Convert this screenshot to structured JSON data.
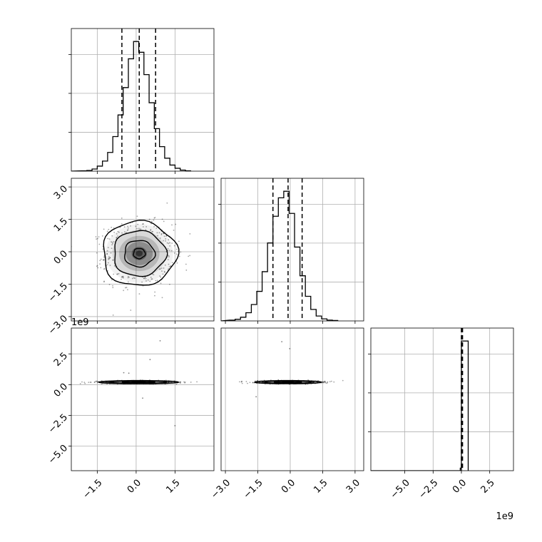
{
  "chart_data": {
    "type": "corner",
    "grid": true,
    "panels": [
      {
        "id": "hist-param1",
        "type": "histogram",
        "xlim": [
          -2.5,
          3.0
        ],
        "bin_start": -2.1,
        "bin_width": 0.2,
        "counts": [
          1,
          2,
          6,
          14,
          28,
          52,
          96,
          156,
          232,
          312,
          360,
          330,
          268,
          190,
          118,
          68,
          36,
          17,
          8,
          3,
          1
        ],
        "quantiles": [
          -0.55,
          0.12,
          0.75
        ],
        "xticks": [
          -1.5,
          0.0,
          1.5
        ],
        "show_xticklabels": false
      },
      {
        "id": "scatter-param1-param2",
        "type": "scatter-contour",
        "xlim": [
          -2.5,
          3.0
        ],
        "ylim": [
          -3.2,
          3.4
        ],
        "xticks": [
          -1.5,
          0.0,
          1.5
        ],
        "yticks": [
          -3.0,
          -1.5,
          0.0,
          1.5,
          3.0
        ],
        "ytick_labels": [
          "−3.0",
          "−1.5",
          "0.0",
          "1.5",
          "3.0"
        ],
        "center": [
          0.12,
          -0.08
        ],
        "sigma": [
          0.65,
          0.68
        ],
        "contour_levels_sigma": [
          0.35,
          0.9,
          1.55,
          2.2
        ],
        "show_xticklabels": false
      },
      {
        "id": "hist-param2",
        "type": "histogram",
        "xlim": [
          -3.2,
          3.4
        ],
        "bin_start": -2.8,
        "bin_width": 0.25,
        "counts": [
          2,
          4,
          9,
          20,
          40,
          72,
          120,
          190,
          255,
          300,
          316,
          262,
          180,
          110,
          60,
          28,
          12,
          5,
          2,
          1
        ],
        "quantiles": [
          -0.8,
          -0.1,
          0.55
        ],
        "xticks": [
          -3.0,
          -1.5,
          0.0,
          1.5,
          3.0
        ],
        "show_xticklabels": false
      },
      {
        "id": "scatter-param1-param3",
        "type": "scatter-contour",
        "xlim": [
          -2.5,
          3.0
        ],
        "ylim": [
          -7.0,
          4.6
        ],
        "xticks": [
          -1.5,
          0.0,
          1.5
        ],
        "xtick_labels": [
          "−1.5",
          "0.0",
          "1.5"
        ],
        "yticks": [
          -5.0,
          -2.5,
          0.0,
          2.5
        ],
        "ytick_labels": [
          "−5.0",
          "−2.5",
          "0.0",
          "2.5"
        ],
        "offset_label_top": "1e9",
        "center": [
          0.1,
          0.2
        ],
        "sigma": [
          0.7,
          0.06
        ]
      },
      {
        "id": "scatter-param2-param3",
        "type": "scatter-contour",
        "xlim": [
          -3.2,
          3.4
        ],
        "ylim": [
          -7.0,
          4.6
        ],
        "xticks": [
          -3.0,
          -1.5,
          0.0,
          1.5,
          3.0
        ],
        "xtick_labels": [
          "−3.0",
          "−1.5",
          "0.0",
          "1.5",
          "3.0"
        ],
        "center": [
          -0.1,
          0.2
        ],
        "sigma": [
          0.7,
          0.06
        ]
      },
      {
        "id": "hist-param3",
        "type": "histogram",
        "xlim": [
          -8.0,
          4.6
        ],
        "xticks": [
          -5.0,
          -2.5,
          0.0,
          2.5
        ],
        "xtick_labels": [
          "−5.0",
          "−2.5",
          "0.0",
          "2.5"
        ],
        "offset_label_bottom": "1e9",
        "bars": [
          {
            "x0": -0.1,
            "x1": 0.0,
            "height": 0.02
          },
          {
            "x0": 0.0,
            "x1": 0.6,
            "height": 1.0
          }
        ],
        "quantiles": [
          0.0,
          0.05,
          0.1
        ]
      }
    ]
  }
}
